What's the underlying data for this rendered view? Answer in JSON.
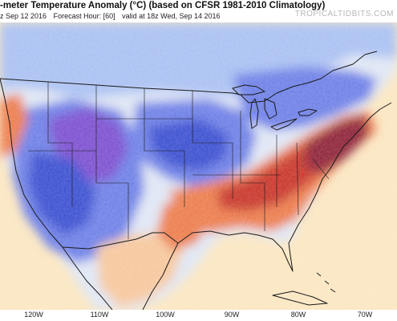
{
  "header": {
    "title": "-meter Temperature Anomaly (°C) (based on CFSR 1981-2010 Climatology)",
    "init": "z Sep 12 2016",
    "forecast_hour": "Forecast Hour: [60]",
    "valid": "valid at 18z Wed, Sep 14 2016",
    "brand": "TROPICALTIDBITS.COM"
  },
  "axis": {
    "lon_labels": [
      "120W",
      "110W",
      "100W",
      "90W",
      "80W",
      "70W"
    ]
  },
  "colors": {
    "ocean": "#fbe6c0",
    "cold_strong": "#3a4fd0",
    "cold": "#6d7fe6",
    "cool": "#a9c0f2",
    "neutral": "#dfe6f4",
    "warm_light": "#f6c79c",
    "warm": "#ec7b4c",
    "hot": "#c8352c",
    "very_hot": "#8e2038",
    "purple": "#7c4fd0",
    "borders": "#1a1a1a"
  }
}
